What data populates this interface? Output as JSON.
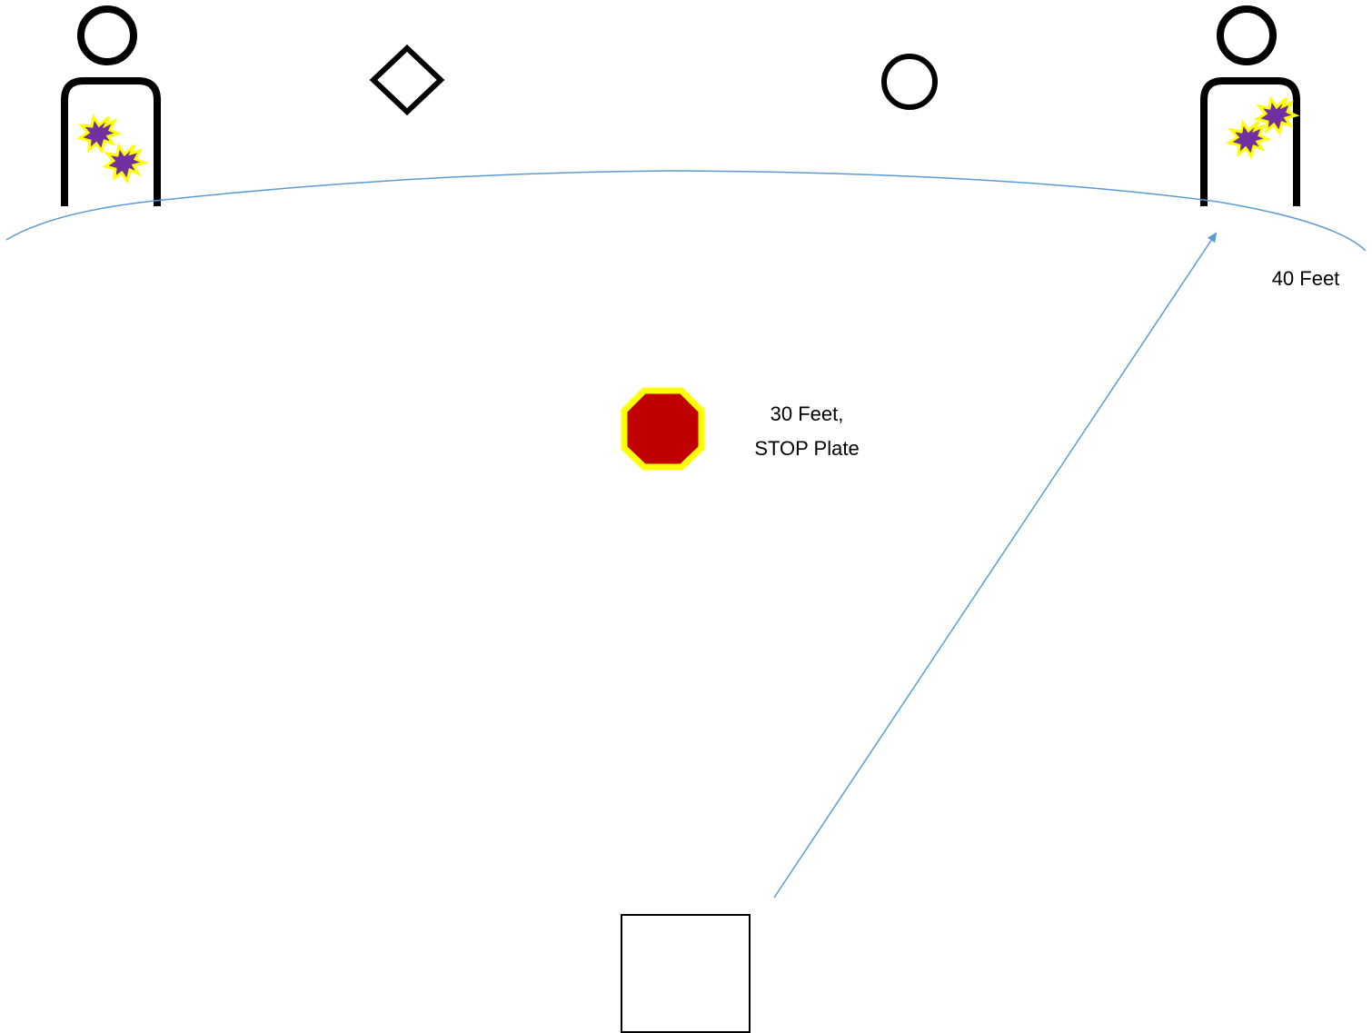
{
  "labels": {
    "distance_far": "40 Feet",
    "distance_mid_line1": "30 Feet,",
    "distance_mid_line2": "STOP Plate"
  },
  "shapes": {
    "target_left": "silhouette-target",
    "target_right": "silhouette-target",
    "no_shoot_diamond": "diamond-outline",
    "no_shoot_circle": "circle-outline",
    "stop_plate": "octagon",
    "shooting_box": "square-outline",
    "hit_markers": "explosion-star"
  },
  "colors": {
    "outline": "#000000",
    "distance_line": "#5b9bd5",
    "stop_plate_fill": "#c00000",
    "stop_plate_border": "#ffff00",
    "hit_fill": "#7030a0",
    "hit_border": "#ffff00"
  }
}
